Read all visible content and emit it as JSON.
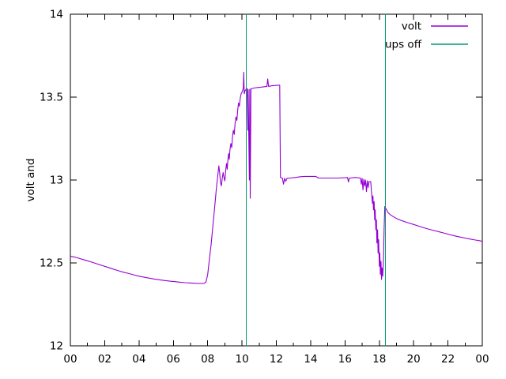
{
  "chart_data": {
    "type": "line",
    "title": "",
    "xlabel": "",
    "ylabel": "volt and",
    "xlim": [
      0,
      24
    ],
    "ylim": [
      12,
      14
    ],
    "grid": false,
    "legend_position": "top-right",
    "x_tick_values": [
      0,
      2,
      4,
      6,
      8,
      10,
      12,
      14,
      16,
      18,
      20,
      22,
      24
    ],
    "x_tick_labels": [
      "00",
      "02",
      "04",
      "06",
      "08",
      "10",
      "12",
      "14",
      "16",
      "18",
      "20",
      "22",
      "00"
    ],
    "x_minor_tick_values": [
      1,
      3,
      5,
      7,
      9,
      11,
      13,
      15,
      17,
      19,
      21,
      23
    ],
    "y_tick_values": [
      12,
      12.5,
      13,
      13.5,
      14
    ],
    "y_tick_labels": [
      "12",
      "12.5",
      "13",
      "13.5",
      "14"
    ],
    "legend": [
      {
        "label": "volt",
        "color": "#9400d3"
      },
      {
        "label": "ups off",
        "color": "#009e73"
      }
    ],
    "series": [
      {
        "name": "volt",
        "color": "#9400d3",
        "points": [
          [
            0.0,
            12.54
          ],
          [
            0.25,
            12.535
          ],
          [
            0.5,
            12.528
          ],
          [
            0.75,
            12.52
          ],
          [
            1.0,
            12.513
          ],
          [
            1.3,
            12.503
          ],
          [
            1.6,
            12.493
          ],
          [
            1.9,
            12.483
          ],
          [
            2.2,
            12.473
          ],
          [
            2.5,
            12.463
          ],
          [
            2.8,
            12.453
          ],
          [
            3.1,
            12.444
          ],
          [
            3.4,
            12.436
          ],
          [
            3.7,
            12.428
          ],
          [
            4.0,
            12.42
          ],
          [
            4.3,
            12.414
          ],
          [
            4.6,
            12.408
          ],
          [
            4.9,
            12.403
          ],
          [
            5.2,
            12.398
          ],
          [
            5.5,
            12.394
          ],
          [
            5.8,
            12.39
          ],
          [
            6.1,
            12.387
          ],
          [
            6.4,
            12.384
          ],
          [
            6.7,
            12.381
          ],
          [
            7.0,
            12.379
          ],
          [
            7.3,
            12.377
          ],
          [
            7.6,
            12.376
          ],
          [
            7.8,
            12.377
          ],
          [
            7.9,
            12.385
          ],
          [
            8.0,
            12.43
          ],
          [
            8.1,
            12.52
          ],
          [
            8.2,
            12.61
          ],
          [
            8.3,
            12.72
          ],
          [
            8.4,
            12.83
          ],
          [
            8.5,
            12.94
          ],
          [
            8.58,
            13.02
          ],
          [
            8.65,
            13.085
          ],
          [
            8.7,
            13.04
          ],
          [
            8.75,
            12.985
          ],
          [
            8.8,
            12.965
          ],
          [
            8.85,
            13.01
          ],
          [
            8.9,
            13.045
          ],
          [
            8.95,
            13.015
          ],
          [
            9.0,
            12.995
          ],
          [
            9.05,
            13.06
          ],
          [
            9.1,
            13.1
          ],
          [
            9.14,
            13.065
          ],
          [
            9.18,
            13.125
          ],
          [
            9.22,
            13.16
          ],
          [
            9.26,
            13.125
          ],
          [
            9.3,
            13.185
          ],
          [
            9.35,
            13.22
          ],
          [
            9.4,
            13.195
          ],
          [
            9.45,
            13.265
          ],
          [
            9.5,
            13.3
          ],
          [
            9.55,
            13.275
          ],
          [
            9.6,
            13.345
          ],
          [
            9.65,
            13.38
          ],
          [
            9.7,
            13.36
          ],
          [
            9.75,
            13.425
          ],
          [
            9.8,
            13.465
          ],
          [
            9.85,
            13.445
          ],
          [
            9.9,
            13.495
          ],
          [
            9.95,
            13.52
          ],
          [
            10.0,
            13.53
          ],
          [
            10.05,
            13.545
          ],
          [
            10.08,
            13.56
          ],
          [
            10.1,
            13.65
          ],
          [
            10.13,
            13.52
          ],
          [
            10.18,
            13.54
          ],
          [
            10.25,
            13.548
          ],
          [
            10.3,
            13.552
          ],
          [
            10.34,
            13.3
          ],
          [
            10.36,
            13.545
          ],
          [
            10.43,
            13.0
          ],
          [
            10.45,
            13.548
          ],
          [
            10.48,
            12.89
          ],
          [
            10.52,
            13.55
          ],
          [
            10.7,
            13.555
          ],
          [
            10.9,
            13.558
          ],
          [
            11.1,
            13.56
          ],
          [
            11.3,
            13.563
          ],
          [
            11.45,
            13.565
          ],
          [
            11.5,
            13.61
          ],
          [
            11.55,
            13.565
          ],
          [
            11.7,
            13.568
          ],
          [
            11.9,
            13.57
          ],
          [
            12.1,
            13.572
          ],
          [
            12.2,
            13.572
          ],
          [
            12.24,
            13.015
          ],
          [
            12.35,
            13.012
          ],
          [
            12.42,
            12.975
          ],
          [
            12.48,
            13.01
          ],
          [
            12.55,
            12.992
          ],
          [
            12.62,
            13.01
          ],
          [
            12.8,
            13.012
          ],
          [
            13.1,
            13.015
          ],
          [
            13.4,
            13.02
          ],
          [
            13.7,
            13.022
          ],
          [
            14.0,
            13.022
          ],
          [
            14.3,
            13.022
          ],
          [
            14.45,
            13.012
          ],
          [
            14.8,
            13.012
          ],
          [
            15.2,
            13.012
          ],
          [
            15.6,
            13.012
          ],
          [
            16.0,
            13.014
          ],
          [
            16.15,
            13.015
          ],
          [
            16.2,
            12.988
          ],
          [
            16.25,
            13.012
          ],
          [
            16.6,
            13.015
          ],
          [
            16.9,
            13.012
          ],
          [
            16.95,
            12.975
          ],
          [
            17.0,
            13.01
          ],
          [
            17.05,
            12.94
          ],
          [
            17.1,
            13.005
          ],
          [
            17.15,
            12.965
          ],
          [
            17.2,
            13.0
          ],
          [
            17.25,
            12.93
          ],
          [
            17.3,
            12.995
          ],
          [
            17.35,
            12.955
          ],
          [
            17.4,
            12.99
          ],
          [
            17.5,
            12.99
          ],
          [
            17.55,
            12.92
          ],
          [
            17.6,
            12.86
          ],
          [
            17.63,
            12.905
          ],
          [
            17.66,
            12.82
          ],
          [
            17.7,
            12.87
          ],
          [
            17.73,
            12.76
          ],
          [
            17.76,
            12.82
          ],
          [
            17.8,
            12.7
          ],
          [
            17.83,
            12.76
          ],
          [
            17.86,
            12.62
          ],
          [
            17.9,
            12.7
          ],
          [
            17.93,
            12.56
          ],
          [
            17.96,
            12.64
          ],
          [
            18.0,
            12.48
          ],
          [
            18.03,
            12.56
          ],
          [
            18.06,
            12.43
          ],
          [
            18.1,
            12.51
          ],
          [
            18.13,
            12.4
          ],
          [
            18.16,
            12.47
          ],
          [
            18.2,
            12.42
          ],
          [
            18.24,
            12.52
          ],
          [
            18.28,
            12.7
          ],
          [
            18.32,
            12.84
          ],
          [
            18.4,
            12.825
          ],
          [
            18.5,
            12.805
          ],
          [
            18.65,
            12.79
          ],
          [
            18.8,
            12.78
          ],
          [
            19.0,
            12.768
          ],
          [
            19.25,
            12.757
          ],
          [
            19.5,
            12.748
          ],
          [
            19.75,
            12.74
          ],
          [
            20.0,
            12.732
          ],
          [
            20.3,
            12.722
          ],
          [
            20.6,
            12.712
          ],
          [
            20.9,
            12.703
          ],
          [
            21.2,
            12.695
          ],
          [
            21.5,
            12.687
          ],
          [
            21.8,
            12.679
          ],
          [
            22.1,
            12.671
          ],
          [
            22.4,
            12.663
          ],
          [
            22.7,
            12.656
          ],
          [
            23.0,
            12.65
          ],
          [
            23.3,
            12.644
          ],
          [
            23.6,
            12.638
          ],
          [
            23.9,
            12.633
          ],
          [
            24.0,
            12.63
          ]
        ]
      }
    ],
    "vlines": {
      "name": "ups off",
      "color": "#009e73",
      "x_hours": [
        10.25,
        18.35
      ]
    }
  },
  "colors": {
    "background": "#ffffff",
    "axis": "#000000",
    "volt": "#9400d3",
    "ups_off": "#009e73"
  }
}
